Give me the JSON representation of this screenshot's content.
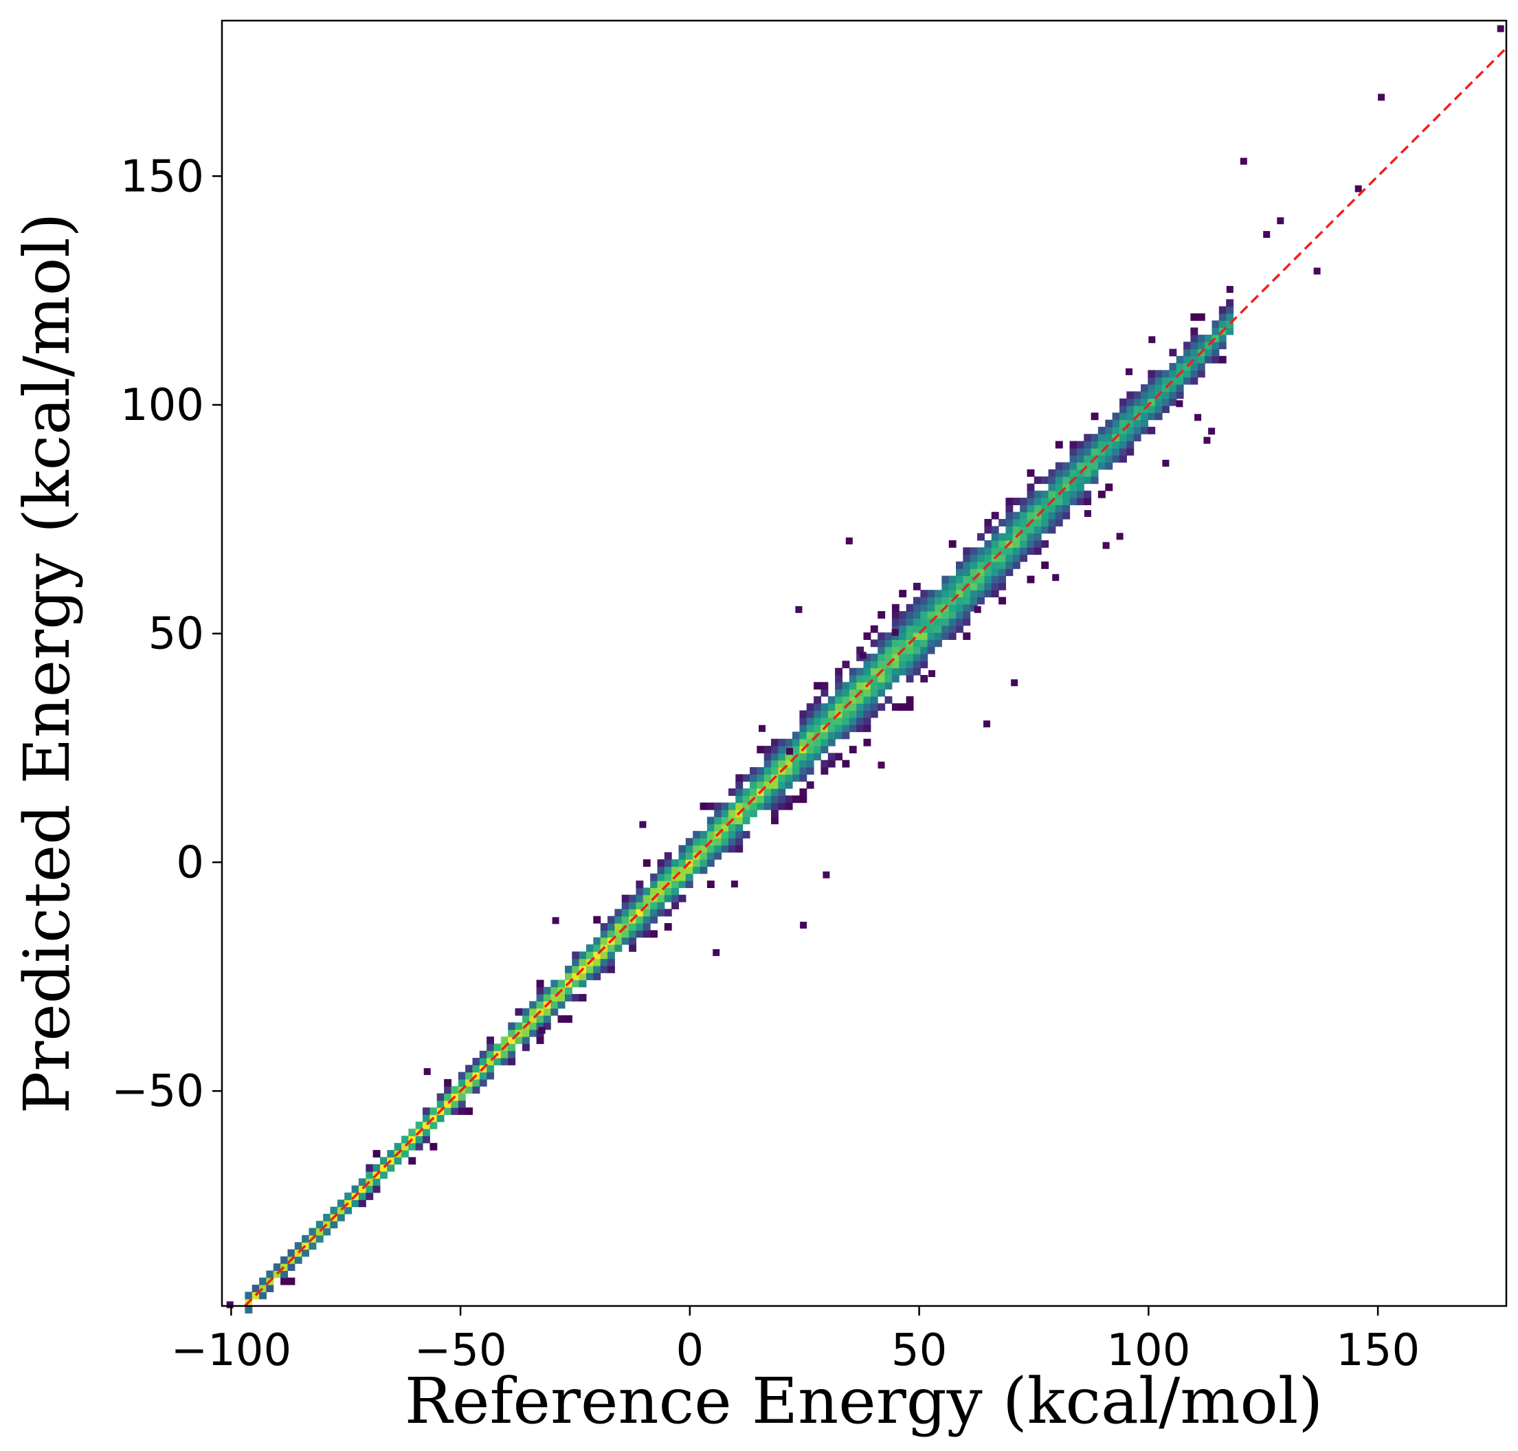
{
  "chart_data": {
    "type": "heatmap",
    "subtype": "2d-histogram density scatter",
    "title": "",
    "xlabel": "Reference Energy (kcal/mol)",
    "ylabel": "Predicted Energy (kcal/mol)",
    "xlim": [
      -102,
      178
    ],
    "ylim": [
      -97,
      184
    ],
    "xticks": [
      -100,
      -50,
      0,
      50,
      100,
      150
    ],
    "yticks": [
      -50,
      0,
      50,
      100,
      150
    ],
    "xtick_labels": [
      "−100",
      "−50",
      "0",
      "50",
      "100",
      "150"
    ],
    "ytick_labels": [
      "−50",
      "0",
      "50",
      "100",
      "150"
    ],
    "grid": false,
    "colormap": "viridis",
    "reference_line": {
      "type": "y=x",
      "style": "dashed",
      "color": "#e8231f"
    },
    "density_profile": {
      "x_range": [
        -97,
        118
      ],
      "spread_at_x": [
        {
          "x": -90,
          "spread": 1.2
        },
        {
          "x": -50,
          "spread": 2.0
        },
        {
          "x": 0,
          "spread": 3.5
        },
        {
          "x": 50,
          "spread": 5.0
        },
        {
          "x": 100,
          "spread": 3.5
        },
        {
          "x": 120,
          "spread": 2.5
        }
      ]
    },
    "outliers": [
      {
        "x": 120,
        "y": 154
      },
      {
        "x": 145,
        "y": 148
      },
      {
        "x": 128,
        "y": 141
      },
      {
        "x": 125,
        "y": 138
      },
      {
        "x": 117,
        "y": 126
      },
      {
        "x": 106,
        "y": 101
      },
      {
        "x": 110,
        "y": 98
      },
      {
        "x": 113,
        "y": 95
      },
      {
        "x": 112,
        "y": 93
      },
      {
        "x": 103,
        "y": 88
      },
      {
        "x": 90,
        "y": 70
      },
      {
        "x": 93,
        "y": 72
      },
      {
        "x": 86,
        "y": 77
      },
      {
        "x": 34,
        "y": 71
      },
      {
        "x": 23,
        "y": 56
      },
      {
        "x": 64,
        "y": 31
      },
      {
        "x": 41,
        "y": 22
      },
      {
        "x": 29,
        "y": -2
      },
      {
        "x": 24,
        "y": -13
      },
      {
        "x": 5,
        "y": -19
      },
      {
        "x": 95,
        "y": 108
      },
      {
        "x": 100,
        "y": 115
      },
      {
        "x": 79,
        "y": 63
      },
      {
        "x": 70,
        "y": 40
      },
      {
        "x": -11,
        "y": 9
      },
      {
        "x": 9,
        "y": -4
      },
      {
        "x": -30,
        "y": -12
      },
      {
        "x": 52,
        "y": 42
      },
      {
        "x": 62,
        "y": 56
      },
      {
        "x": 44,
        "y": 51
      },
      {
        "x": -58,
        "y": -45
      },
      {
        "x": -33,
        "y": -36
      },
      {
        "x": 15,
        "y": 30
      },
      {
        "x": 21,
        "y": 25
      },
      {
        "x": 37,
        "y": 46
      },
      {
        "x": 136,
        "y": 130
      },
      {
        "x": 150,
        "y": 168
      },
      {
        "x": 176,
        "y": 183
      },
      {
        "x": -101,
        "y": -96
      }
    ]
  }
}
